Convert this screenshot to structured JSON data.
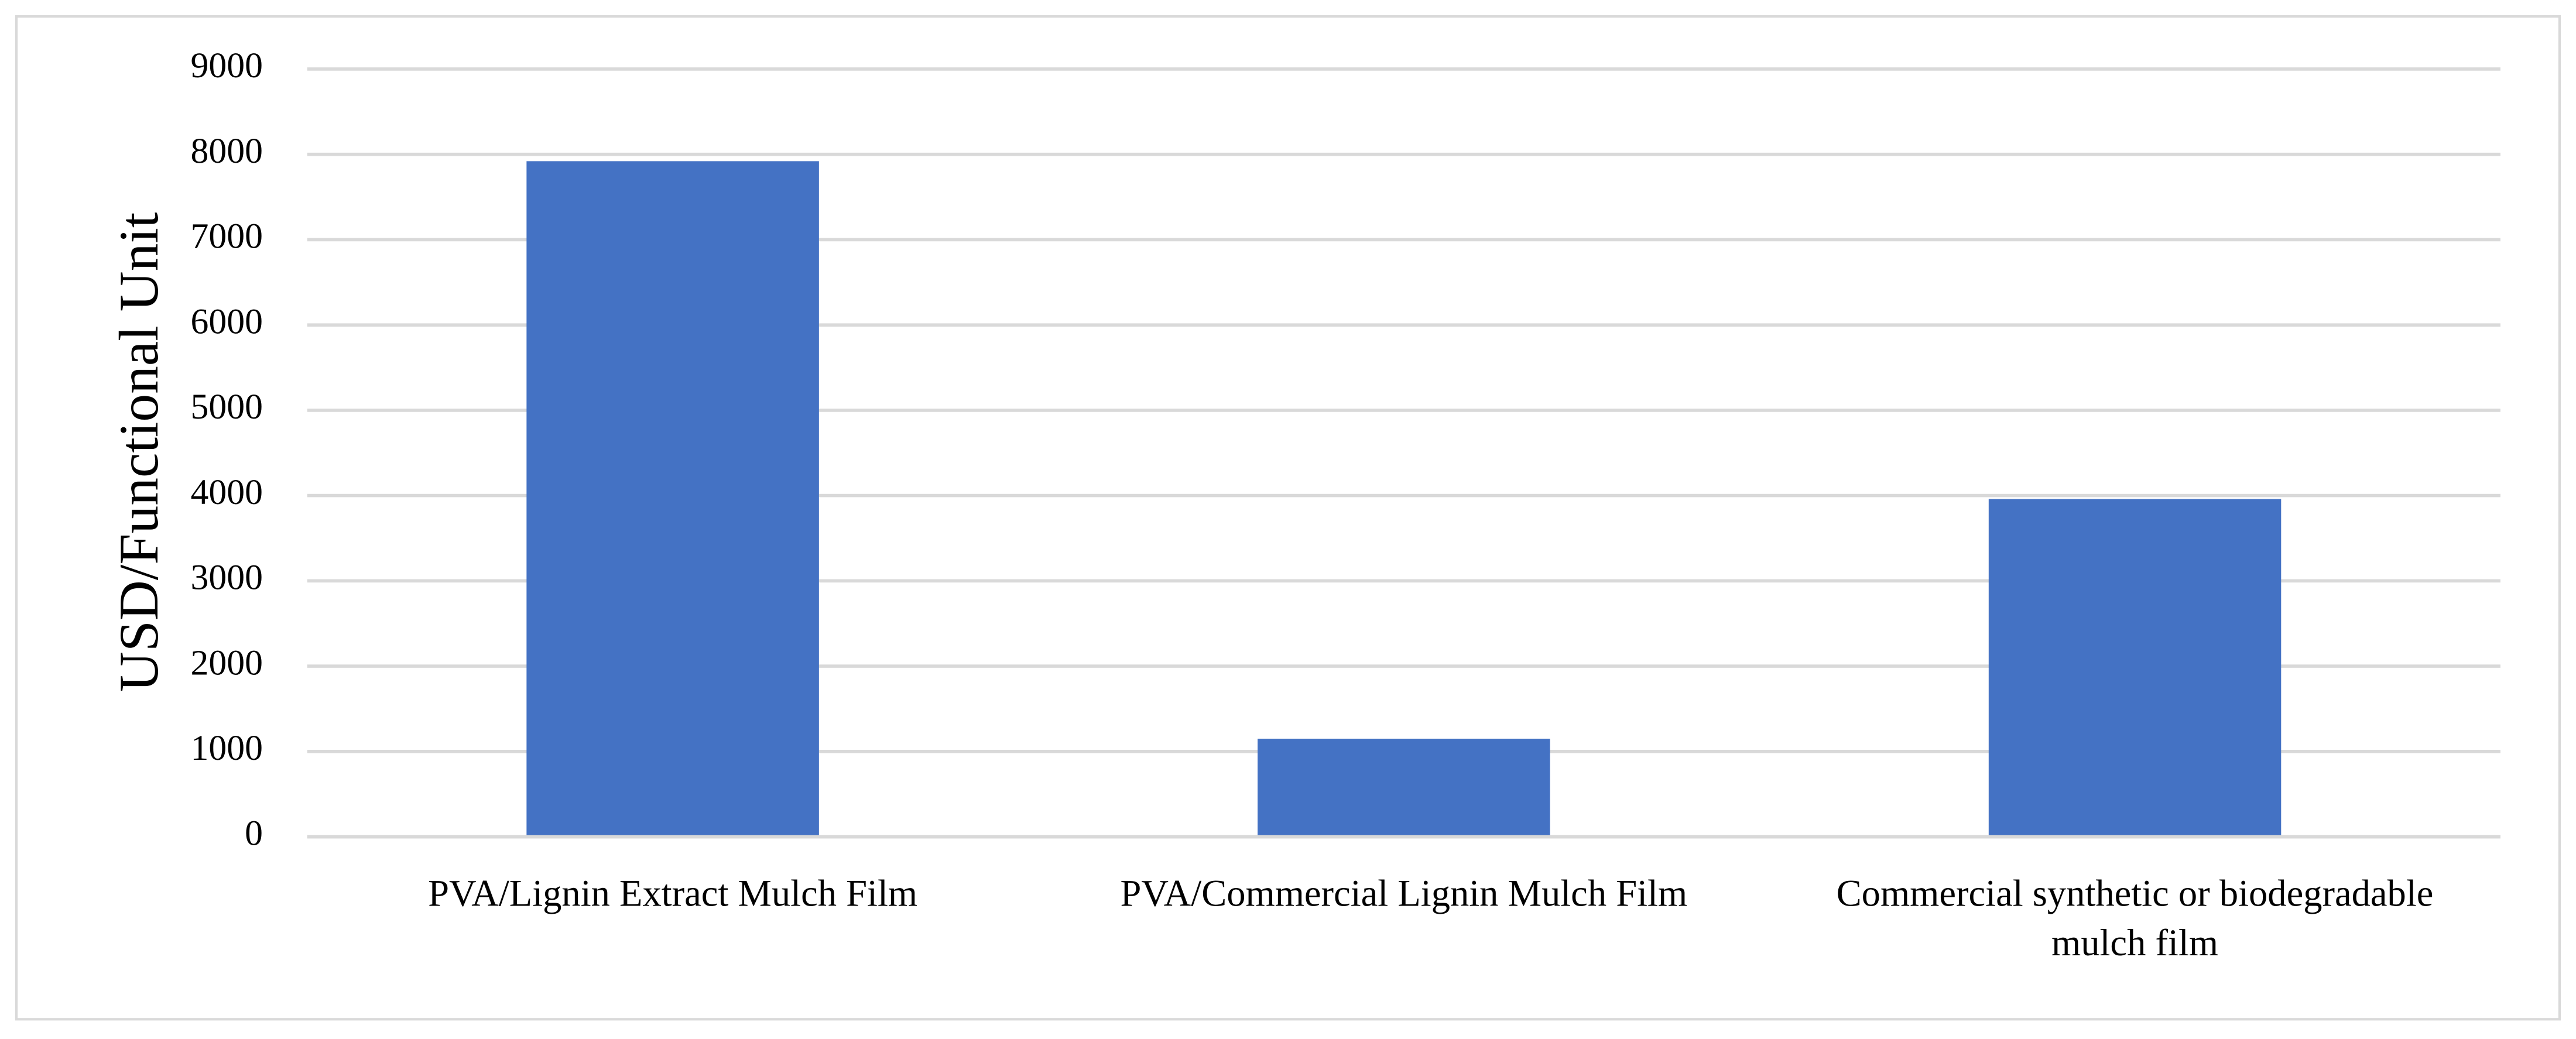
{
  "chart_data": {
    "type": "bar",
    "y_label": "USD/Functional Unit",
    "categories": [
      "PVA/Lignin Extract Mulch Film",
      "PVA/Commercial Lignin Mulch Film",
      "Commercial synthetic or biodegradable mulch film"
    ],
    "values": [
      7920,
      1150,
      3960
    ],
    "color": "#4472c4",
    "ylim": [
      0,
      9000
    ],
    "yticks": [
      0,
      1000,
      2000,
      3000,
      4000,
      5000,
      6000,
      7000,
      8000,
      9000
    ],
    "grid": true
  }
}
